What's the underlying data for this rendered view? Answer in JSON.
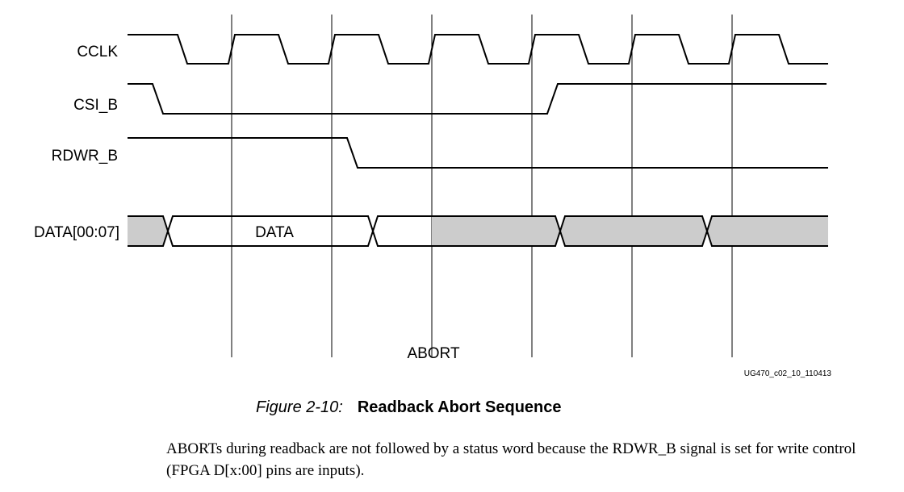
{
  "signals": {
    "cclk": "CCLK",
    "csi_b": "CSI_B",
    "rdwr_b": "RDWR_B",
    "data_bus": "DATA[00:07]"
  },
  "bus_label": "DATA",
  "marker_label": "ABORT",
  "figure_id": "UG470_c02_10_110413",
  "caption": {
    "number": "Figure 2-10:",
    "title": "Readback Abort Sequence"
  },
  "body_text": "ABORTs during readback are not followed by a status word because the RDWR_B signal is set for write control (FPGA D[x:00] pins are inputs).",
  "colors": {
    "line": "#000000",
    "bus_shade": "#cccccc"
  }
}
